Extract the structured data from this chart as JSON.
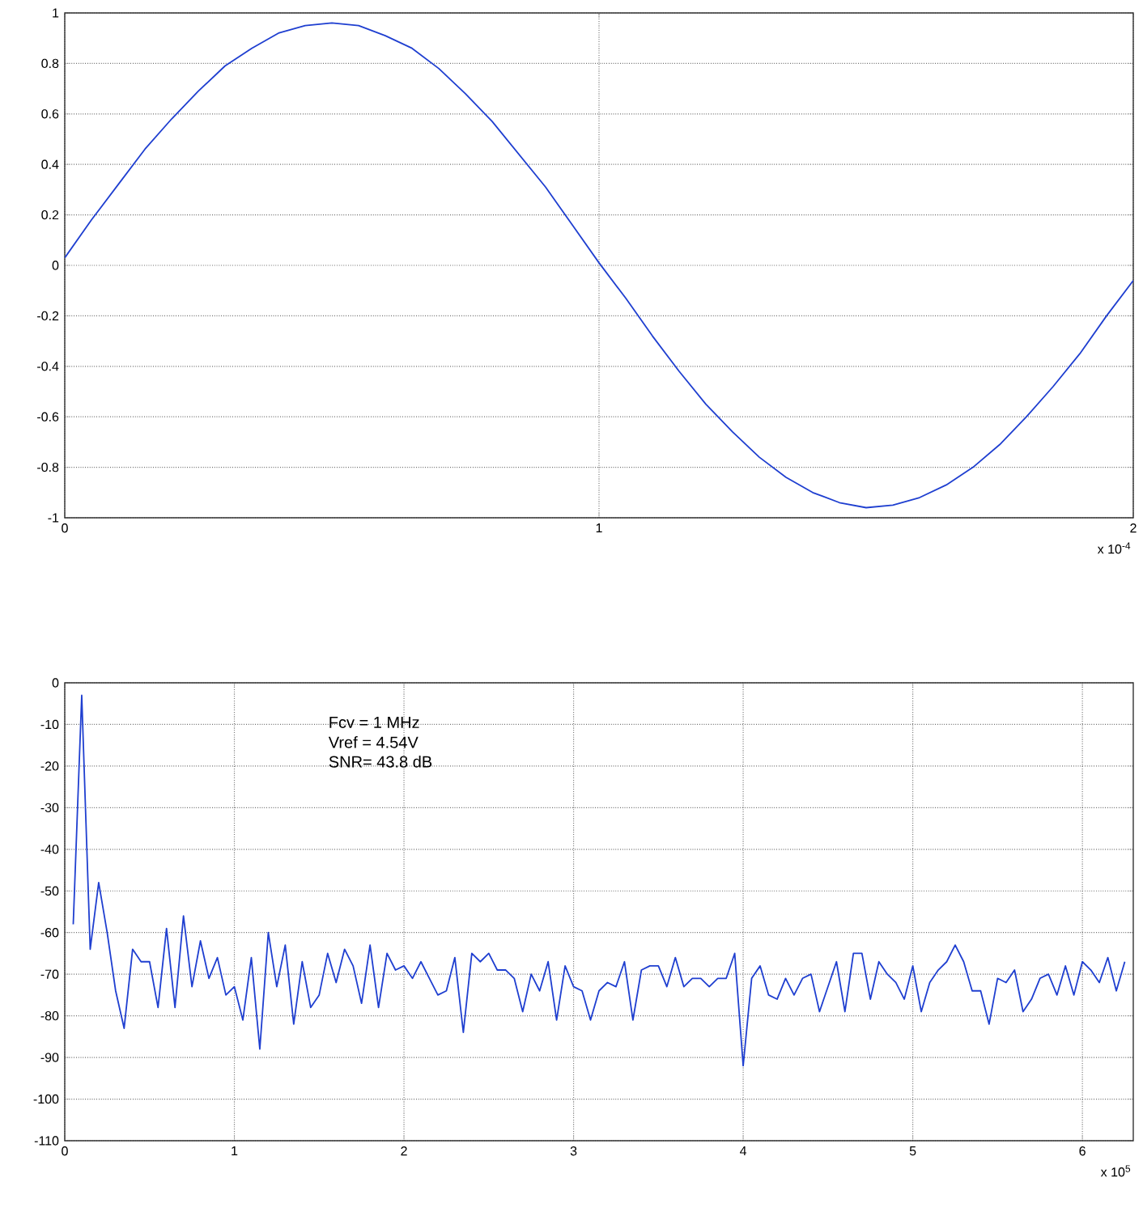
{
  "chart_data": [
    {
      "type": "line",
      "xlim": [
        0,
        2
      ],
      "ylim": [
        -1,
        1
      ],
      "xticks": [
        0,
        1,
        2
      ],
      "yticks": [
        -1,
        -0.8,
        -0.6,
        -0.4,
        -0.2,
        0,
        0.2,
        0.4,
        0.6,
        0.8,
        1
      ],
      "grid": true,
      "line_style": "solid",
      "annotations": [
        "x 10$^{-4}$"
      ],
      "series": [
        {
          "color": "#1f3fd0",
          "x": [
            0,
            0.05,
            0.1,
            0.15,
            0.2,
            0.25,
            0.3,
            0.35,
            0.4,
            0.45,
            0.5,
            0.55,
            0.6,
            0.65,
            0.7,
            0.75,
            0.8,
            0.85,
            0.9,
            0.95,
            1,
            1.05,
            1.1,
            1.15,
            1.2,
            1.25,
            1.3,
            1.35,
            1.4,
            1.45,
            1.5,
            1.55,
            1.6,
            1.65,
            1.7,
            1.75,
            1.8,
            1.85,
            1.9,
            1.95,
            2
          ],
          "values": [
            0.03,
            0.18,
            0.32,
            0.46,
            0.58,
            0.69,
            0.79,
            0.86,
            0.92,
            0.95,
            0.96,
            0.95,
            0.91,
            0.86,
            0.78,
            0.68,
            0.57,
            0.44,
            0.31,
            0.16,
            0.01,
            -0.13,
            -0.28,
            -0.42,
            -0.55,
            -0.66,
            -0.76,
            -0.84,
            -0.9,
            -0.94,
            -0.96,
            -0.95,
            -0.92,
            -0.87,
            -0.8,
            -0.71,
            -0.6,
            -0.48,
            -0.35,
            -0.2,
            -0.06
          ]
        }
      ]
    },
    {
      "type": "line",
      "xlim": [
        0,
        6.3
      ],
      "ylim": [
        -110,
        0
      ],
      "xticks": [
        0,
        1,
        2,
        3,
        4,
        5,
        6
      ],
      "yticks": [
        -110,
        -100,
        -90,
        -80,
        -70,
        -60,
        -50,
        -40,
        -30,
        -20,
        -10,
        0
      ],
      "grid": true,
      "line_style": "solid",
      "annotations": [
        "Fcv = 1 MHz",
        "Vref = 4.54V",
        "SNR= 43.8 dB",
        "x 10$^{5}$"
      ],
      "series": [
        {
          "color": "#1f3fd0",
          "x": [
            0.05,
            0.1,
            0.15,
            0.2,
            0.25,
            0.3,
            0.35,
            0.4,
            0.45,
            0.5,
            0.55,
            0.6,
            0.65,
            0.7,
            0.75,
            0.8,
            0.85,
            0.9,
            0.95,
            1,
            1.05,
            1.1,
            1.15,
            1.2,
            1.25,
            1.3,
            1.35,
            1.4,
            1.45,
            1.5,
            1.55,
            1.6,
            1.65,
            1.7,
            1.75,
            1.8,
            1.85,
            1.9,
            1.95,
            2,
            2.05,
            2.1,
            2.15,
            2.2,
            2.25,
            2.3,
            2.35,
            2.4,
            2.45,
            2.5,
            2.55,
            2.6,
            2.65,
            2.7,
            2.75,
            2.8,
            2.85,
            2.9,
            2.95,
            3,
            3.05,
            3.1,
            3.15,
            3.2,
            3.25,
            3.3,
            3.35,
            3.4,
            3.45,
            3.5,
            3.55,
            3.6,
            3.65,
            3.7,
            3.75,
            3.8,
            3.85,
            3.9,
            3.95,
            4,
            4.05,
            4.1,
            4.15,
            4.2,
            4.25,
            4.3,
            4.35,
            4.4,
            4.45,
            4.5,
            4.55,
            4.6,
            4.65,
            4.7,
            4.75,
            4.8,
            4.85,
            4.9,
            4.95,
            5,
            5.05,
            5.1,
            5.15,
            5.2,
            5.25,
            5.3,
            5.35,
            5.4,
            5.45,
            5.5,
            5.55,
            5.6,
            5.65,
            5.7,
            5.75,
            5.8,
            5.85,
            5.9,
            5.95,
            6,
            6.05,
            6.1,
            6.15,
            6.2,
            6.25
          ],
          "values": [
            -58,
            -3,
            -64,
            -48,
            -60,
            -74,
            -83,
            -64,
            -67,
            -67,
            -78,
            -59,
            -78,
            -56,
            -73,
            -62,
            -71,
            -66,
            -75,
            -73,
            -81,
            -66,
            -88,
            -60,
            -73,
            -63,
            -82,
            -67,
            -78,
            -75,
            -65,
            -72,
            -64,
            -68,
            -77,
            -63,
            -78,
            -65,
            -69,
            -68,
            -71,
            -67,
            -71,
            -75,
            -74,
            -66,
            -84,
            -65,
            -67,
            -65,
            -69,
            -69,
            -71,
            -79,
            -70,
            -74,
            -67,
            -81,
            -68,
            -73,
            -74,
            -81,
            -74,
            -72,
            -73,
            -67,
            -81,
            -69,
            -68,
            -68,
            -73,
            -66,
            -73,
            -71,
            -71,
            -73,
            -71,
            -71,
            -65,
            -92,
            -71,
            -68,
            -75,
            -76,
            -71,
            -75,
            -71,
            -70,
            -79,
            -73,
            -67,
            -79,
            -65,
            -65,
            -76,
            -67,
            -70,
            -72,
            -76,
            -68,
            -79,
            -72,
            -69,
            -67,
            -63,
            -67,
            -74,
            -74,
            -82,
            -71,
            -72,
            -69,
            -79,
            -76,
            -71,
            -70,
            -75,
            -68,
            -75,
            -67,
            -69,
            -72,
            -66,
            -74,
            -67
          ]
        }
      ]
    }
  ]
}
